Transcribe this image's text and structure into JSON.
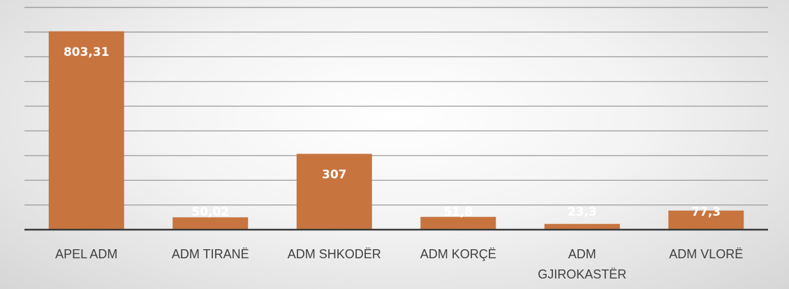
{
  "chart_data": {
    "type": "bar",
    "categories": [
      "APEL ADM",
      "ADM TIRANË",
      "ADM SHKODËR",
      "ADM KORÇË",
      "ADM GJIROKASTËR",
      "ADM VLORË"
    ],
    "category_lines": [
      [
        "APEL ADM"
      ],
      [
        "ADM TIRANË"
      ],
      [
        "ADM SHKODËR"
      ],
      [
        "ADM KORÇË"
      ],
      [
        "ADM",
        "GJIROKASTËR"
      ],
      [
        "ADM VLORË"
      ]
    ],
    "values": [
      803.31,
      50.02,
      307,
      51.8,
      23.3,
      77.3
    ],
    "data_labels": [
      "803,31",
      "50,02",
      "307",
      "51,8",
      "23,3",
      "77,3"
    ],
    "title": "",
    "xlabel": "",
    "ylabel": "",
    "ylim": [
      0,
      900
    ],
    "grid": true,
    "legend": "none",
    "colors": {
      "bar": "#c8743f",
      "gridline": "#9a9a9a",
      "axis": "#3a3a3a",
      "label_text": "#3f3f3f",
      "value_text": "#ffffff"
    }
  }
}
